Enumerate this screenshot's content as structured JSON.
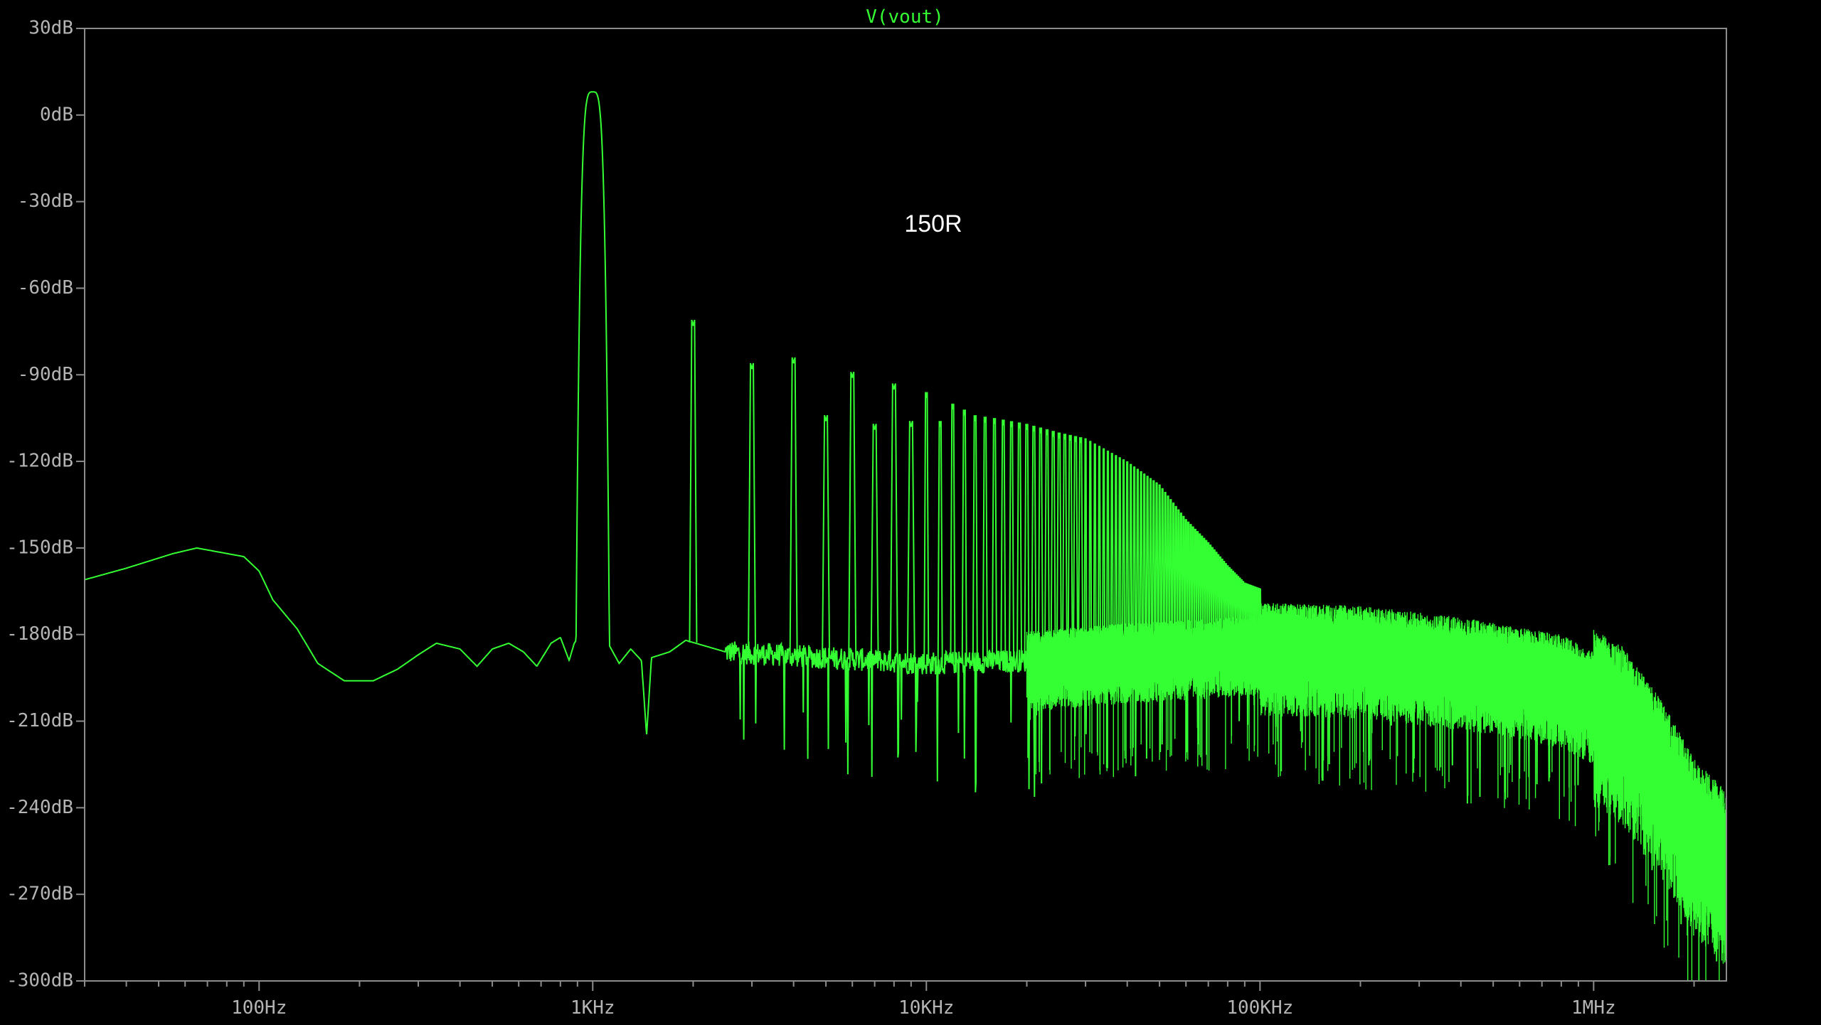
{
  "chart_data": {
    "type": "line",
    "title": "V(vout)",
    "annotation": "150R",
    "x_scale": "log",
    "xlim": [
      30,
      2500000
    ],
    "ylim": [
      -300,
      30
    ],
    "y_ticks": [
      30,
      0,
      -30,
      -60,
      -90,
      -120,
      -150,
      -180,
      -210,
      -240,
      -270,
      -300
    ],
    "y_tick_labels": [
      "30dB",
      "0dB",
      "-30dB",
      "-60dB",
      "-90dB",
      "-120dB",
      "-150dB",
      "-180dB",
      "-210dB",
      "-240dB",
      "-270dB",
      "-300dB"
    ],
    "x_major_ticks": [
      100,
      1000,
      10000,
      100000,
      1000000
    ],
    "x_tick_labels": [
      "100Hz",
      "1KHz",
      "10KHz",
      "100KHz",
      "1MHz"
    ],
    "grid": false,
    "colors": {
      "trace": "#33ff33",
      "frame": "#8c8c8c",
      "background": "#000000",
      "labels": "#b4b4b4"
    },
    "series": [
      {
        "noise_floor": [
          [
            30,
            -161
          ],
          [
            40,
            -157
          ],
          [
            55,
            -152
          ],
          [
            65,
            -150
          ],
          [
            90,
            -153
          ],
          [
            100,
            -158
          ],
          [
            110,
            -168
          ],
          [
            130,
            -178
          ],
          [
            150,
            -190
          ],
          [
            180,
            -196
          ],
          [
            220,
            -196
          ],
          [
            260,
            -192
          ],
          [
            300,
            -187
          ],
          [
            340,
            -183
          ],
          [
            400,
            -185
          ],
          [
            450,
            -191
          ],
          [
            500,
            -185
          ],
          [
            560,
            -183
          ],
          [
            620,
            -186
          ],
          [
            680,
            -191
          ],
          [
            750,
            -183
          ],
          [
            800,
            -181
          ],
          [
            850,
            -189
          ],
          [
            880,
            -183
          ],
          [
            920,
            -180
          ],
          [
            1100,
            -182
          ],
          [
            1200,
            -190
          ],
          [
            1300,
            -185
          ],
          [
            1400,
            -189
          ],
          [
            1450,
            -215
          ],
          [
            1500,
            -188
          ],
          [
            1700,
            -186
          ],
          [
            1900,
            -182
          ],
          [
            2500,
            -186
          ],
          [
            5000,
            -188
          ],
          [
            10000,
            -190
          ],
          [
            20000,
            -189
          ],
          [
            40000,
            -186
          ],
          [
            80000,
            -184
          ],
          [
            100000,
            -183
          ],
          [
            200000,
            -184
          ],
          [
            400000,
            -188
          ],
          [
            800000,
            -194
          ],
          [
            1200000,
            -205
          ],
          [
            1600000,
            -225
          ],
          [
            2000000,
            -245
          ],
          [
            2500000,
            -256
          ]
        ],
        "harmonic_peaks": [
          [
            1000,
            8
          ],
          [
            2000,
            -73
          ],
          [
            3000,
            -88
          ],
          [
            4000,
            -86
          ],
          [
            5000,
            -106
          ],
          [
            6000,
            -91
          ],
          [
            7000,
            -109
          ],
          [
            8000,
            -95
          ],
          [
            9000,
            -108
          ],
          [
            10000,
            -98
          ],
          [
            11000,
            -108
          ],
          [
            12000,
            -102
          ],
          [
            14000,
            -106
          ],
          [
            16000,
            -107
          ],
          [
            20000,
            -109
          ],
          [
            25000,
            -112
          ],
          [
            30000,
            -114
          ],
          [
            40000,
            -122
          ],
          [
            50000,
            -130
          ],
          [
            60000,
            -142
          ],
          [
            70000,
            -150
          ],
          [
            80000,
            -158
          ],
          [
            90000,
            -164
          ],
          [
            100000,
            -166
          ]
        ]
      }
    ]
  }
}
